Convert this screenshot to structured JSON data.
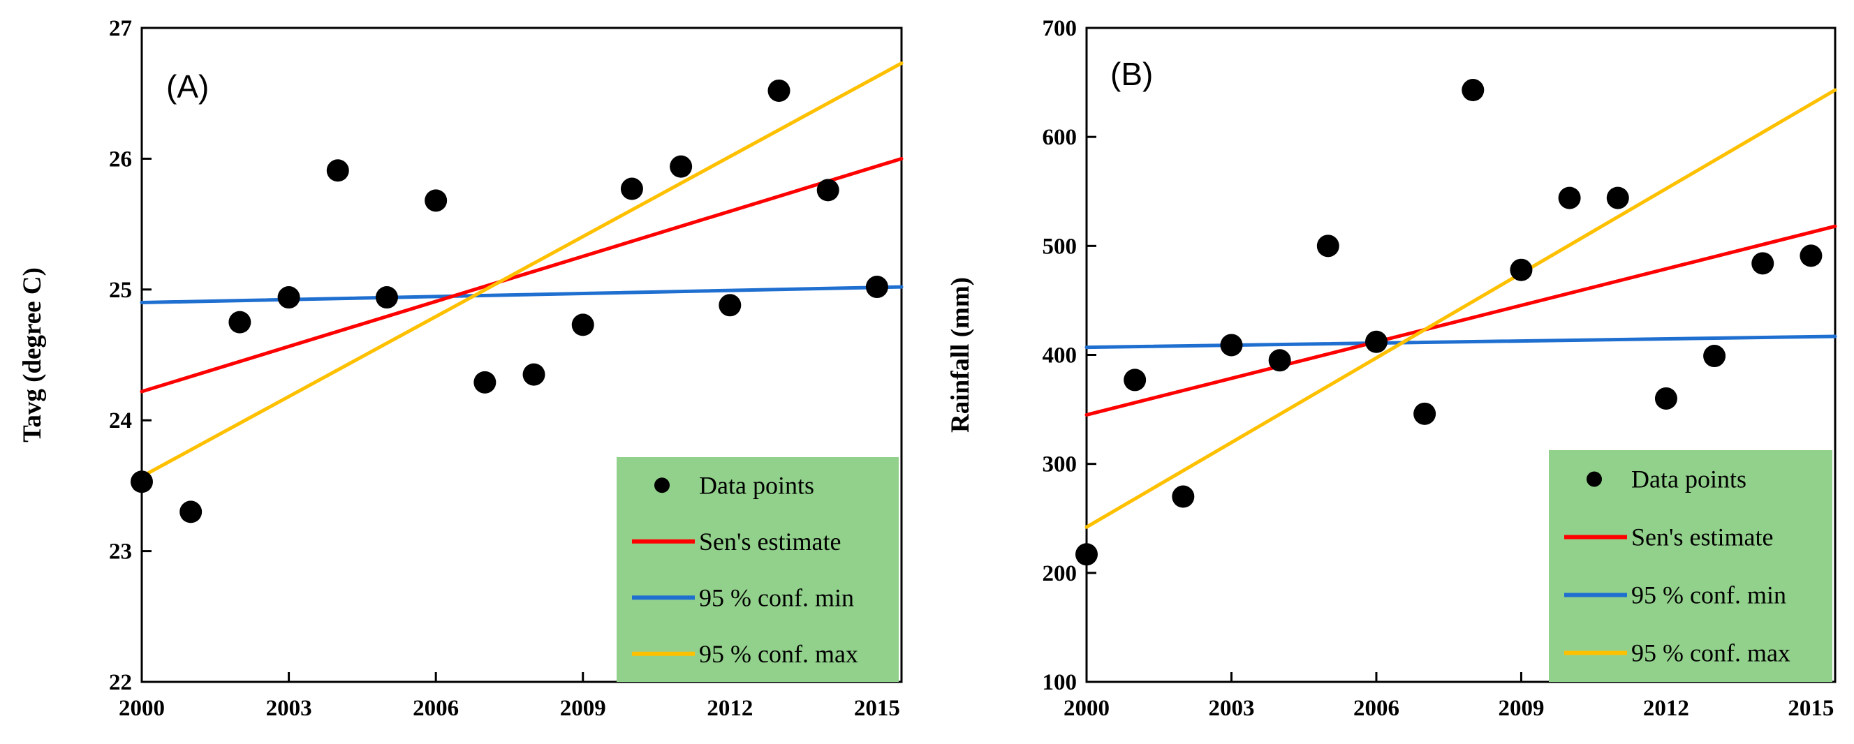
{
  "chart_data": [
    {
      "type": "scatter",
      "panel_label": "(A)",
      "ylabel": "Tavg (degree C)",
      "xlabel": "",
      "xlim": [
        2000,
        2015.5
      ],
      "ylim": [
        22,
        27
      ],
      "x_ticks": [
        2000,
        2003,
        2006,
        2009,
        2012,
        2015
      ],
      "y_ticks": [
        22,
        23,
        24,
        25,
        26,
        27
      ],
      "points": {
        "name": "Data points",
        "x": [
          2000,
          2001,
          2002,
          2003,
          2004,
          2005,
          2006,
          2007,
          2008,
          2009,
          2010,
          2011,
          2012,
          2013,
          2014,
          2015
        ],
        "y": [
          23.53,
          23.3,
          24.75,
          24.94,
          25.91,
          24.94,
          25.68,
          24.29,
          24.35,
          24.73,
          25.77,
          25.94,
          24.88,
          26.52,
          25.76,
          25.02
        ]
      },
      "series": [
        {
          "name": "Sen's estimate",
          "color": "#ff0000",
          "x": [
            2000,
            2015.5
          ],
          "y": [
            24.22,
            26.0
          ]
        },
        {
          "name": "95 % conf. min",
          "color": "#1f6fd0",
          "x": [
            2000,
            2015.5
          ],
          "y": [
            24.9,
            25.02
          ]
        },
        {
          "name": "95 % conf. max",
          "color": "#ffc000",
          "x": [
            2000,
            2015.5
          ],
          "y": [
            23.57,
            26.73
          ]
        }
      ],
      "legend": {
        "position": "bottom-right",
        "background": "#92d18b"
      }
    },
    {
      "type": "scatter",
      "panel_label": "(B)",
      "ylabel": "Rainfall (mm)",
      "xlabel": "",
      "xlim": [
        2000,
        2015.5
      ],
      "ylim": [
        100,
        700
      ],
      "x_ticks": [
        2000,
        2003,
        2006,
        2009,
        2012,
        2015
      ],
      "y_ticks": [
        100,
        200,
        300,
        400,
        500,
        600,
        700
      ],
      "points": {
        "name": "Data points",
        "x": [
          2000,
          2001,
          2002,
          2003,
          2004,
          2005,
          2006,
          2007,
          2008,
          2009,
          2010,
          2011,
          2012,
          2013,
          2014,
          2015
        ],
        "y": [
          217,
          377,
          270,
          409,
          395,
          500,
          412,
          346,
          643,
          478,
          544,
          544,
          360,
          399,
          484,
          491
        ]
      },
      "series": [
        {
          "name": "Sen's estimate",
          "color": "#ff0000",
          "x": [
            2000,
            2015.5
          ],
          "y": [
            345,
            518
          ]
        },
        {
          "name": "95 % conf. min",
          "color": "#1f6fd0",
          "x": [
            2000,
            2015.5
          ],
          "y": [
            407,
            417
          ]
        },
        {
          "name": "95 % conf. max",
          "color": "#ffc000",
          "x": [
            2000,
            2015.5
          ],
          "y": [
            242,
            643
          ]
        }
      ],
      "legend": {
        "position": "bottom-right",
        "background": "#92d18b"
      }
    }
  ]
}
